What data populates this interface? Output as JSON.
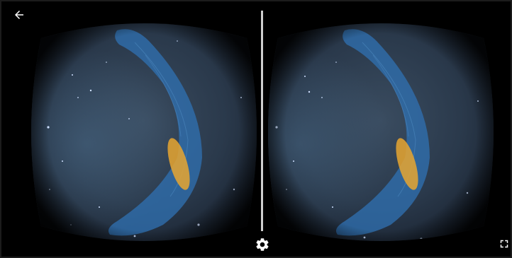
{
  "viewer": {
    "mode": "stereoscopic-vr",
    "eyes": [
      "left",
      "right"
    ],
    "scene": "night-sky-probability-skymap"
  },
  "toolbar": {
    "back_icon": "arrow-left-icon",
    "settings_icon": "gear-icon",
    "fullscreen_icon": "fullscreen-exit-icon"
  },
  "colors": {
    "sky": "#2b3a4c",
    "skymap_region": "#2f6fb0",
    "skymap_hotspot": "#e8a630",
    "divider": "#cfcfcf",
    "icon": "#ffffff"
  }
}
